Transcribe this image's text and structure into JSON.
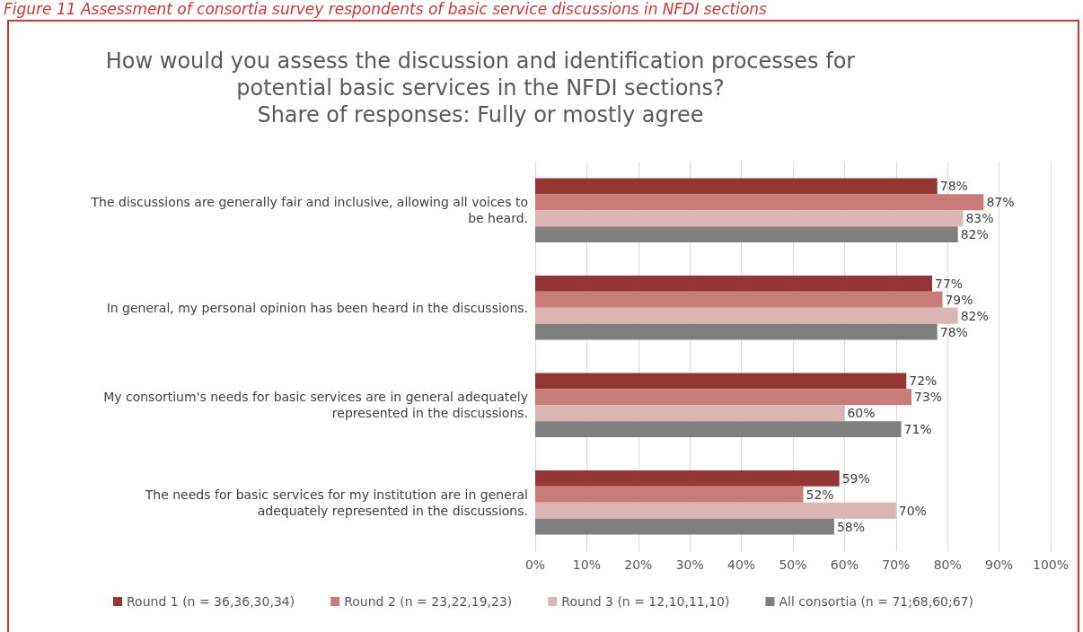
{
  "chart_data": {
    "type": "bar",
    "orientation": "horizontal",
    "title": "How would you assess the discussion and identification processes for\npotential basic services in the NFDI sections?\nShare of responses: Fully or mostly agree",
    "annotations": [
      "Figure 11 Assessment of consortia survey respondents of basic service discussions in NFDI sections"
    ],
    "categories": [
      "The discussions are generally fair and inclusive, allowing all voices to\nbe heard.",
      "In general, my personal opinion has been heard in the discussions.",
      "My consortium's needs for basic services are in general adequately\nrepresented in the discussions.",
      "The needs for basic services for my institution are in general\nadequately represented in the discussions."
    ],
    "series": [
      {
        "name": "Round 1 (n = 36,36,30,34)",
        "color": "#943634",
        "values": [
          78,
          77,
          72,
          59
        ],
        "value_labels": [
          "78%",
          "77%",
          "72%",
          "59%"
        ]
      },
      {
        "name": "Round 2 (n = 23,22,19,23)",
        "color": "#c87b78",
        "values": [
          87,
          79,
          73,
          52
        ],
        "value_labels": [
          "87%",
          "79%",
          "73%",
          "52%"
        ]
      },
      {
        "name": "Round 3 (n = 12,10,11,10)",
        "color": "#dcb4b3",
        "values": [
          83,
          82,
          60,
          70
        ],
        "value_labels": [
          "83%",
          "82%",
          "60%",
          "70%"
        ]
      },
      {
        "name": "All consortia (n = 71;68,60;67)",
        "color": "#7f7f7f",
        "values": [
          82,
          78,
          71,
          58
        ],
        "value_labels": [
          "82%",
          "78%",
          "71%",
          "58%"
        ]
      }
    ],
    "xlim": [
      0,
      100
    ],
    "xticks": [
      {
        "value": 0,
        "label": "0%"
      },
      {
        "value": 10,
        "label": "10%"
      },
      {
        "value": 20,
        "label": "20%"
      },
      {
        "value": 30,
        "label": "30%"
      },
      {
        "value": 40,
        "label": "40%"
      },
      {
        "value": 50,
        "label": "50%"
      },
      {
        "value": 60,
        "label": "60%"
      },
      {
        "value": 70,
        "label": "70%"
      },
      {
        "value": 80,
        "label": "80%"
      },
      {
        "value": 90,
        "label": "90%"
      },
      {
        "value": 100,
        "label": "100%"
      }
    ],
    "grid": "x",
    "legend": "bottom"
  }
}
